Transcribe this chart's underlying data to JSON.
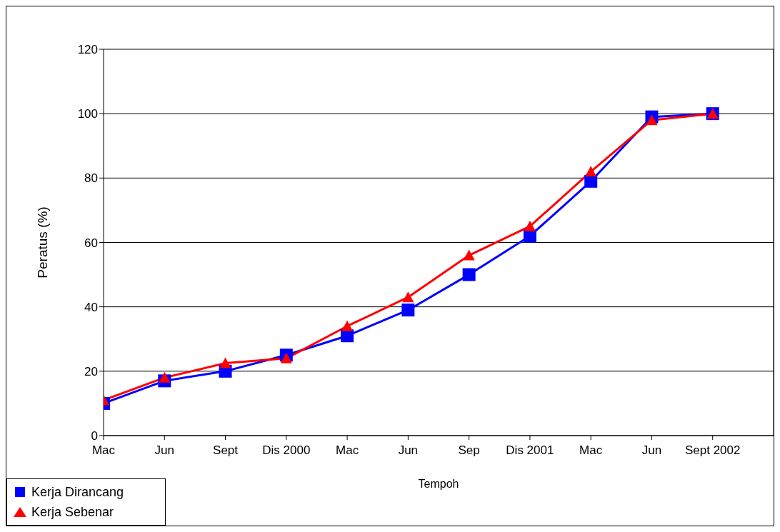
{
  "chart_data": {
    "type": "line",
    "xlabel": "Tempoh",
    "ylabel": "Peratus (%)",
    "categories": [
      "Mac",
      "Jun",
      "Sept",
      "Dis 2000",
      "Mac",
      "Jun",
      "Sep",
      "Dis 2001",
      "Mac",
      "Jun",
      "Sept 2002"
    ],
    "series": [
      {
        "name": "Kerja Dirancang",
        "color": "#0000ff",
        "marker": "square",
        "values": [
          10,
          17,
          20,
          25,
          31,
          39,
          50,
          62,
          79,
          99,
          100
        ]
      },
      {
        "name": "Kerja Sebenar",
        "color": "#ff0000",
        "marker": "triangle",
        "values": [
          11,
          18,
          22.5,
          24,
          34,
          43,
          56,
          65,
          82,
          98,
          100
        ]
      }
    ],
    "ylim": [
      0,
      120
    ],
    "yticks": [
      0,
      20,
      40,
      60,
      80,
      100,
      120
    ],
    "grid": "y",
    "legend": "bottom left",
    "line_style": "solid"
  }
}
